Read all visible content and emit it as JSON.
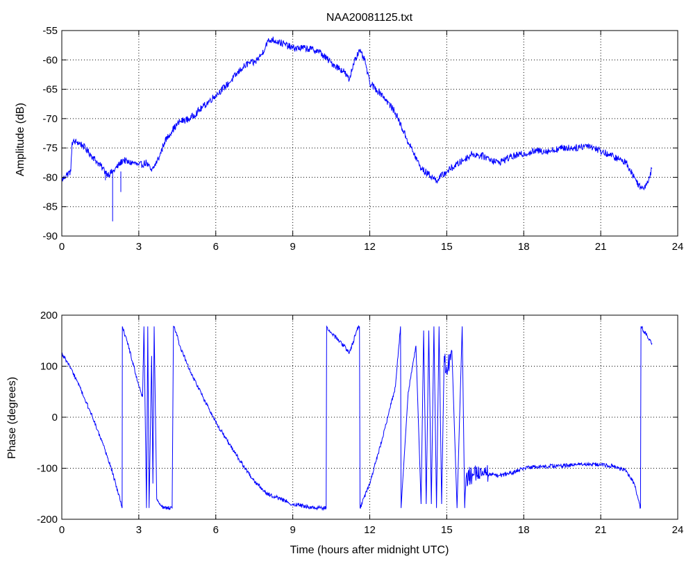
{
  "chart_data": [
    {
      "type": "line",
      "title": "NAA20081125.txt",
      "xlabel": "",
      "ylabel": "Amplitude (dB)",
      "xlim": [
        0,
        24
      ],
      "ylim": [
        -90,
        -55
      ],
      "xticks": [
        0,
        3,
        6,
        9,
        12,
        15,
        18,
        21,
        24
      ],
      "yticks": [
        -90,
        -85,
        -80,
        -75,
        -70,
        -65,
        -60,
        -55
      ],
      "xtick_labels": [
        "0",
        "3",
        "6",
        "9",
        "12",
        "15",
        "18",
        "21",
        "24"
      ],
      "ytick_labels": [
        "-90",
        "-85",
        "-80",
        "-75",
        "-70",
        "-65",
        "-60",
        "-55"
      ],
      "grid": true,
      "line_color": "#0000ff",
      "noise_amplitude": 0.6,
      "x": [
        0.0,
        0.2,
        0.35,
        0.4,
        0.6,
        0.8,
        1.0,
        1.2,
        1.4,
        1.6,
        1.8,
        2.0,
        2.2,
        2.4,
        2.6,
        2.8,
        3.0,
        3.3,
        3.5,
        3.8,
        4.0,
        4.3,
        4.6,
        5.0,
        5.5,
        6.0,
        6.5,
        7.0,
        7.3,
        7.5,
        7.8,
        8.0,
        8.2,
        8.5,
        9.0,
        9.5,
        10.0,
        10.5,
        11.0,
        11.2,
        11.4,
        11.6,
        11.8,
        12.0,
        12.5,
        13.0,
        13.5,
        14.0,
        14.3,
        14.6,
        15.0,
        15.5,
        16.0,
        16.5,
        17.0,
        17.5,
        18.0,
        18.5,
        19.0,
        19.5,
        20.0,
        20.5,
        21.0,
        21.5,
        22.0,
        22.3,
        22.6,
        22.8,
        23.0
      ],
      "y": [
        -80.5,
        -79.5,
        -79.0,
        -74.0,
        -74.0,
        -74.5,
        -75.5,
        -76.5,
        -77.5,
        -78.5,
        -79.5,
        -79.0,
        -78.0,
        -77.0,
        -77.5,
        -77.5,
        -78.0,
        -77.5,
        -79.0,
        -76.5,
        -74.0,
        -72.0,
        -70.5,
        -70.0,
        -68.0,
        -66.0,
        -64.0,
        -61.5,
        -60.5,
        -60.5,
        -59.0,
        -57.0,
        -56.5,
        -57.0,
        -58.0,
        -58.0,
        -58.5,
        -60.5,
        -62.0,
        -63.5,
        -60.0,
        -58.5,
        -60.0,
        -64.0,
        -66.0,
        -69.0,
        -74.0,
        -78.5,
        -79.5,
        -80.5,
        -79.0,
        -77.5,
        -76.0,
        -76.5,
        -77.5,
        -76.5,
        -76.0,
        -75.5,
        -75.5,
        -75.0,
        -75.0,
        -74.5,
        -75.5,
        -76.5,
        -77.5,
        -80.0,
        -82.0,
        -81.0,
        -78.5
      ],
      "spikes": [
        {
          "x": 1.98,
          "y": -87.5
        },
        {
          "x": 2.3,
          "y": -82.5
        },
        {
          "x": 1.7,
          "y": -80.5
        }
      ]
    },
    {
      "type": "line",
      "title": "",
      "xlabel": "Time (hours after midnight UTC)",
      "ylabel": "Phase (degrees)",
      "xlim": [
        0,
        24
      ],
      "ylim": [
        -200,
        200
      ],
      "xticks": [
        0,
        3,
        6,
        9,
        12,
        15,
        18,
        21,
        24
      ],
      "yticks": [
        -200,
        -100,
        0,
        100,
        200
      ],
      "xtick_labels": [
        "0",
        "3",
        "6",
        "9",
        "12",
        "15",
        "18",
        "21",
        "24"
      ],
      "ytick_labels": [
        "-200",
        "-100",
        "0",
        "100",
        "200"
      ],
      "grid": true,
      "line_color": "#0000ff",
      "noise_amplitude": 4,
      "x": [
        0.0,
        0.3,
        0.6,
        0.9,
        1.2,
        1.5,
        1.8,
        2.1,
        2.35,
        2.36,
        2.4,
        2.6,
        2.8,
        3.0,
        3.15,
        3.2,
        3.3,
        3.35,
        3.4,
        3.5,
        3.55,
        3.6,
        3.7,
        3.8,
        4.0,
        4.2,
        4.3,
        4.35,
        4.4,
        4.6,
        5.0,
        5.5,
        6.0,
        6.5,
        7.0,
        7.5,
        8.0,
        8.5,
        9.0,
        9.5,
        10.0,
        10.3,
        10.32,
        10.5,
        11.0,
        11.2,
        11.5,
        11.6,
        11.62,
        12.0,
        12.5,
        13.0,
        13.2,
        13.22,
        13.5,
        13.8,
        14.0,
        14.1,
        14.2,
        14.3,
        14.4,
        14.5,
        14.6,
        14.7,
        14.8,
        14.9,
        15.0,
        15.2,
        15.4,
        15.6,
        15.7,
        15.75,
        16.0,
        16.5,
        17.0,
        17.5,
        18.0,
        18.5,
        19.0,
        19.5,
        20.0,
        20.5,
        21.0,
        21.5,
        22.0,
        22.3,
        22.55,
        22.57,
        22.8,
        23.0
      ],
      "y": [
        125,
        100,
        70,
        35,
        0,
        -40,
        -80,
        -130,
        -178,
        178,
        170,
        140,
        100,
        60,
        40,
        178,
        -178,
        178,
        -178,
        120,
        -130,
        178,
        -160,
        -170,
        -178,
        -178,
        -178,
        178,
        175,
        140,
        90,
        40,
        -10,
        -50,
        -90,
        -125,
        -150,
        -160,
        -170,
        -175,
        -178,
        -178,
        178,
        165,
        140,
        125,
        170,
        178,
        -178,
        -130,
        -40,
        60,
        178,
        -178,
        50,
        140,
        -170,
        170,
        -170,
        170,
        -170,
        178,
        -178,
        178,
        -170,
        120,
        100,
        130,
        -178,
        178,
        -178,
        -120,
        -110,
        -110,
        -115,
        -110,
        -100,
        -97,
        -96,
        -95,
        -93,
        -92,
        -93,
        -96,
        -105,
        -130,
        -178,
        178,
        160,
        145
      ],
      "noise_ranges": [
        {
          "from": 15.4,
          "to": 16.6,
          "amplitude": 20
        },
        {
          "from": 14.0,
          "to": 15.4,
          "amplitude": 25
        }
      ]
    }
  ]
}
